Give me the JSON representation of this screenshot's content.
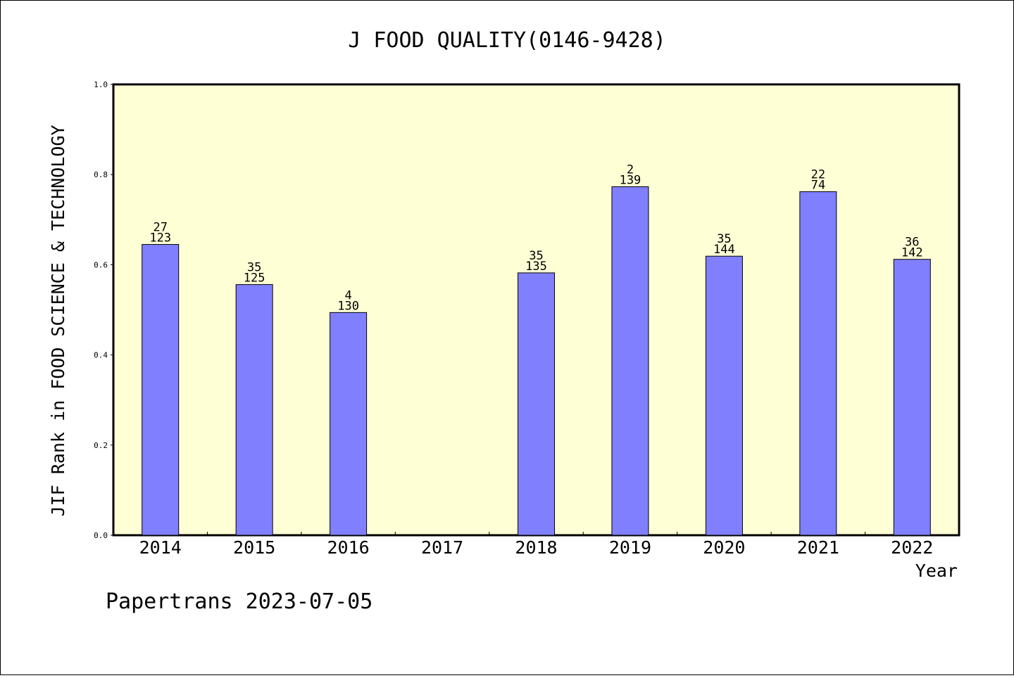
{
  "chart_data": {
    "type": "bar",
    "title": "J FOOD QUALITY(0146-9428)",
    "xlabel": "Year",
    "ylabel": "JIF Rank in FOOD SCIENCE & TECHNOLOGY",
    "ylim": [
      0.0,
      1.0
    ],
    "yticks": [
      "0.0",
      "0.2",
      "0.4",
      "0.6",
      "0.8",
      "1.0"
    ],
    "categories": [
      "2014",
      "2015",
      "2016",
      "2017",
      "2018",
      "2019",
      "2020",
      "2021",
      "2022"
    ],
    "values": [
      0.645,
      0.556,
      0.494,
      null,
      0.582,
      0.773,
      0.619,
      0.762,
      0.612
    ],
    "rank_labels": [
      "27",
      "35",
      "4",
      "",
      "35",
      "2",
      "35",
      "22",
      "36"
    ],
    "total_labels": [
      "123",
      "125",
      "130",
      "",
      "135",
      "139",
      "144",
      "74",
      "142"
    ],
    "colors": {
      "bar": "#8080ff",
      "plot_background": "#ffffd6"
    },
    "grid": false
  },
  "footer": "Papertrans 2023-07-05"
}
